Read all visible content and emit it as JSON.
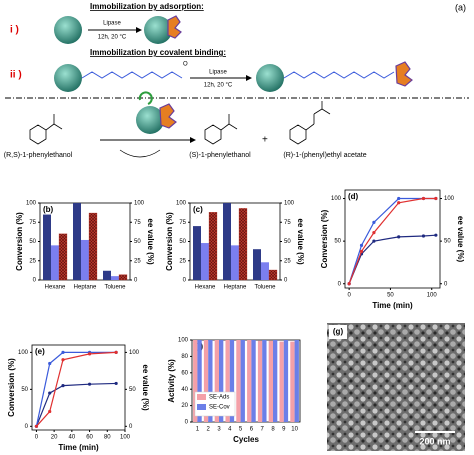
{
  "scheme": {
    "panel": "(a)",
    "steps": [
      {
        "label": "i )",
        "title": "Immobilization by adsorption:",
        "reagent": "Lipase",
        "conditions": "12h, 20 °C"
      },
      {
        "label": "ii )",
        "title": "Immobilization by covalent binding:",
        "reagent": "Lipase",
        "conditions": "12h, 20 °C"
      }
    ],
    "reaction": {
      "substrate": "(R,S)-1-phenylethanol",
      "product1": "(S)-1-phenylethanol",
      "plus": "+",
      "product2": "(R)-1-(phenyl)ethyl acetate"
    }
  },
  "sem": {
    "label": "(g)",
    "scale": "200 nm"
  },
  "chart_data": [
    {
      "type": "bar",
      "label": "(b)",
      "categories": [
        "Hexane",
        "Heptane",
        "Toluene"
      ],
      "ylabel": "Conversion (%)",
      "y2label": "ee value (%)",
      "ylabel_color": "#000000",
      "y2label_color": "#000000",
      "ylim": [
        0,
        100
      ],
      "yticks": [
        0,
        25,
        50,
        75,
        100
      ],
      "y2lim": [
        0,
        100
      ],
      "y2ticks": [
        0,
        25,
        50,
        75,
        100
      ],
      "series": [
        {
          "color": "#2e3a87",
          "values": [
            85,
            100,
            12
          ]
        },
        {
          "color": "#7b7ff0",
          "values": [
            45,
            52,
            5
          ]
        },
        {
          "color": "#c0392b",
          "hatch": true,
          "axis": "y2",
          "values": [
            60,
            87,
            7
          ]
        }
      ]
    },
    {
      "type": "bar",
      "label": "(c)",
      "categories": [
        "Hexane",
        "Heptane",
        "Toluene"
      ],
      "ylabel": "Conversion (%)",
      "y2label": "ee value (%)",
      "ylabel_color": "#000000",
      "y2label_color": "#000000",
      "ylim": [
        0,
        100
      ],
      "yticks": [
        0,
        25,
        50,
        75,
        100
      ],
      "y2lim": [
        0,
        100
      ],
      "y2ticks": [
        0,
        25,
        50,
        75,
        100
      ],
      "series": [
        {
          "color": "#2e3a87",
          "values": [
            70,
            100,
            40
          ]
        },
        {
          "color": "#7b7ff0",
          "values": [
            48,
            45,
            23
          ]
        },
        {
          "color": "#c0392b",
          "hatch": true,
          "axis": "y2",
          "values": [
            88,
            93,
            13
          ]
        }
      ]
    },
    {
      "type": "line",
      "label": "(d)",
      "xlabel": "Time (min)",
      "ylabel": "Conversion (%)",
      "y2label": "ee value (%)",
      "ylabel_color": "#1f2a80",
      "y2label_color": "#e03131",
      "x": [
        0,
        15,
        30,
        60,
        90,
        105
      ],
      "xlim": [
        -5,
        110
      ],
      "xticks": [
        0,
        50,
        100
      ],
      "ylim": [
        -5,
        110
      ],
      "yticks": [
        0,
        50,
        100
      ],
      "y2lim": [
        -5,
        110
      ],
      "y2ticks": [
        0,
        50,
        100
      ],
      "series": [
        {
          "color": "#1f2a80",
          "values": [
            0,
            35,
            50,
            55,
            56,
            57
          ]
        },
        {
          "color": "#3b5bdb",
          "values": [
            0,
            45,
            72,
            100,
            100,
            100
          ]
        },
        {
          "color": "#e03131",
          "axis": "y2",
          "values": [
            0,
            38,
            60,
            95,
            100,
            100
          ]
        }
      ]
    },
    {
      "type": "line",
      "label": "(e)",
      "xlabel": "Time (min)",
      "ylabel": "Conversion (%)",
      "y2label": "ee value (%)",
      "ylabel_color": "#1f2a80",
      "y2label_color": "#e03131",
      "x": [
        0,
        15,
        30,
        60,
        90
      ],
      "xlim": [
        -5,
        100
      ],
      "xticks": [
        0,
        20,
        40,
        60,
        80,
        100
      ],
      "ylim": [
        -5,
        110
      ],
      "yticks": [
        0,
        50,
        100
      ],
      "y2lim": [
        -5,
        110
      ],
      "y2ticks": [
        0,
        50,
        100
      ],
      "series": [
        {
          "color": "#1f2a80",
          "values": [
            0,
            45,
            55,
            57,
            58
          ]
        },
        {
          "color": "#3b5bdb",
          "values": [
            0,
            85,
            100,
            100,
            100
          ]
        },
        {
          "color": "#e03131",
          "axis": "y2",
          "values": [
            0,
            20,
            90,
            98,
            100
          ]
        }
      ]
    },
    {
      "type": "bar",
      "label": "(f)",
      "xlabel": "Cycles",
      "ylabel": "Activity (%)",
      "ylabel_color": "#000000",
      "categories": [
        "1",
        "2",
        "3",
        "4",
        "5",
        "6",
        "7",
        "8",
        "9",
        "10"
      ],
      "ylim": [
        0,
        100
      ],
      "yticks": [
        0,
        20,
        40,
        60,
        80,
        100
      ],
      "legend": "lower left",
      "series": [
        {
          "name": "SE-Ads",
          "color": "#f4a0a8",
          "values": [
            100,
            100,
            100,
            100,
            100,
            100,
            99,
            99,
            98,
            98
          ]
        },
        {
          "name": "SE-Cov",
          "color": "#6b7fe8",
          "values": [
            100,
            100,
            100,
            100,
            100,
            100,
            100,
            100,
            100,
            100
          ]
        }
      ]
    }
  ]
}
